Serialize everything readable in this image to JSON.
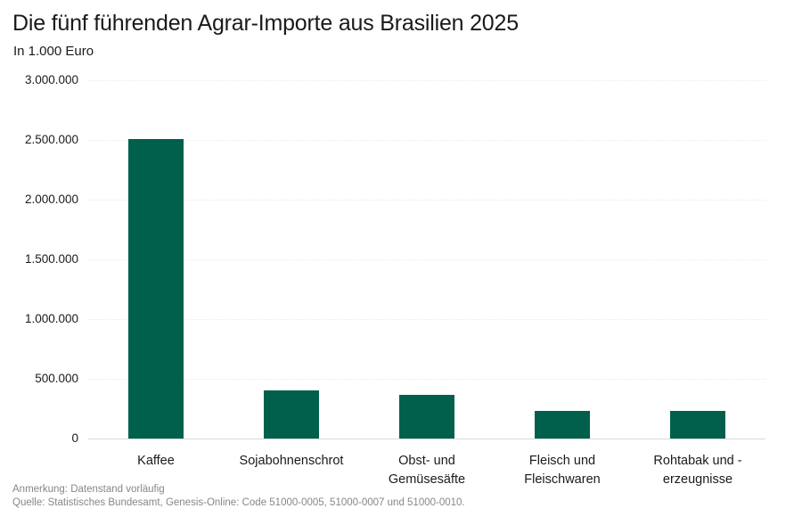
{
  "header": {
    "title": "Die fünf führenden Agrar-Importe aus Brasilien 2025",
    "subtitle": "In 1.000 Euro"
  },
  "chart_data": {
    "type": "bar",
    "title": "Die fünf führenden Agrar-Importe aus Brasilien 2025",
    "subtitle_unit": "In 1.000 Euro",
    "categories": [
      "Kaffee",
      "Sojabohnenschrot",
      "Obst- und Gemüsesäfte",
      "Fleisch und Fleischwaren",
      "Rohtabak und -erzeugnisse"
    ],
    "category_label_lines": [
      [
        "Kaffee"
      ],
      [
        "Sojabohnenschrot"
      ],
      [
        "Obst- und Gemüsesäfte"
      ],
      [
        "Fleisch und",
        "Fleischwaren"
      ],
      [
        "Rohtabak und -",
        "erzeugnisse"
      ]
    ],
    "values": [
      2510000,
      405000,
      368000,
      235000,
      231000
    ],
    "xlabel": "",
    "ylabel": "In 1.000 Euro",
    "ylim": [
      0,
      3000000
    ],
    "ytick_step": 500000,
    "ytick_labels": [
      "0",
      "500.000",
      "1.000.000",
      "1.500.000",
      "2.000.000",
      "2.500.000",
      "3.000.000"
    ],
    "grid": "horizontal-dotted",
    "legend": "none"
  },
  "footer": {
    "note": "Anmerkung: Datenstand vorläufig",
    "source": "Quelle: Statistisches Bundesamt, Genesis-Online: Code 51000-0005, 51000-0007 und 51000-0010."
  },
  "colors": {
    "bar": "#00604b",
    "grid": "#ebebeb",
    "baseline": "#d9d9d9",
    "text": "#1a1a1a",
    "muted_text": "#878787"
  }
}
